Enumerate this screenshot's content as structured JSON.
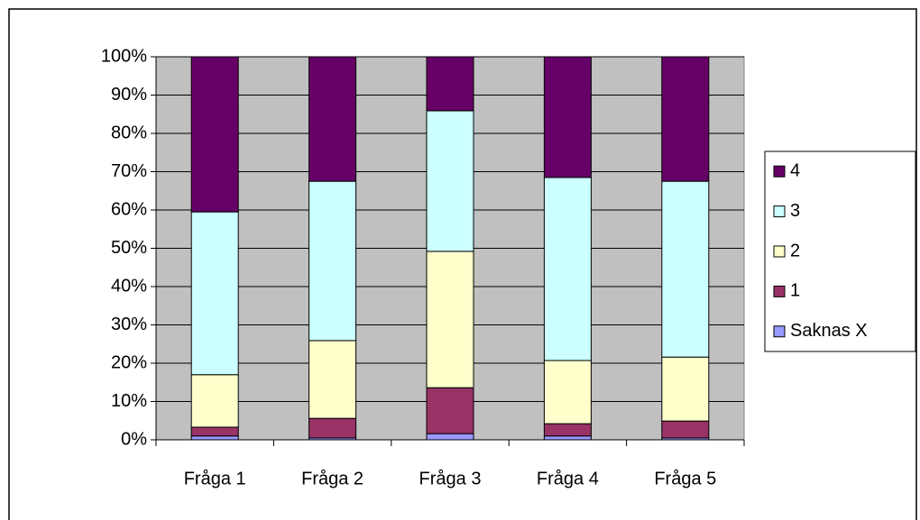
{
  "chart_data": {
    "type": "stacked_bar_100",
    "categories": [
      "Fråga 1",
      "Fråga 2",
      "Fråga 3",
      "Fråga 4",
      "Fråga 5"
    ],
    "series": [
      {
        "name": "Saknas X",
        "color": "#9999ff",
        "values": [
          1,
          0.5,
          1.6,
          1,
          0.5
        ]
      },
      {
        "name": "1",
        "color": "#993366",
        "values": [
          2.3,
          5.1,
          12,
          3.2,
          4.4
        ]
      },
      {
        "name": "2",
        "color": "#ffffcc",
        "values": [
          13.7,
          20.3,
          35.6,
          16.5,
          16.7
        ]
      },
      {
        "name": "3",
        "color": "#ccffff",
        "values": [
          42.5,
          41.6,
          36.7,
          47.8,
          45.9
        ]
      },
      {
        "name": "4",
        "color": "#660066",
        "values": [
          40.5,
          32.5,
          14.1,
          31.5,
          32.5
        ]
      }
    ],
    "ylim": [
      0,
      100
    ],
    "yticks": [
      {
        "value": 0,
        "label": "0%"
      },
      {
        "value": 10,
        "label": "10%"
      },
      {
        "value": 20,
        "label": "20%"
      },
      {
        "value": 30,
        "label": "30%"
      },
      {
        "value": 40,
        "label": "40%"
      },
      {
        "value": 50,
        "label": "50%"
      },
      {
        "value": 60,
        "label": "60%"
      },
      {
        "value": 70,
        "label": "70%"
      },
      {
        "value": 80,
        "label": "80%"
      },
      {
        "value": 90,
        "label": "90%"
      },
      {
        "value": 100,
        "label": "100%"
      }
    ],
    "grid": true,
    "plot_background": "#c0c0c0",
    "legend": "right"
  }
}
